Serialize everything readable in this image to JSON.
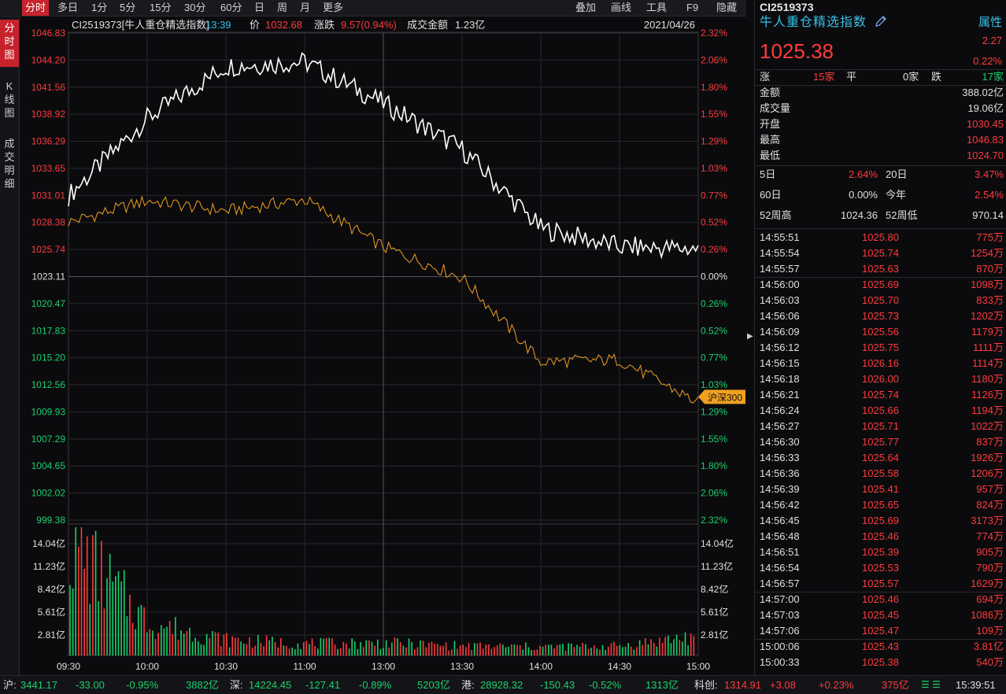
{
  "tabs": [
    {
      "label": "分时"
    },
    {
      "label": "多日"
    },
    {
      "label": "1分"
    },
    {
      "label": "5分"
    },
    {
      "label": "15分"
    },
    {
      "label": "30分"
    },
    {
      "label": "60分"
    },
    {
      "label": "日"
    },
    {
      "label": "周"
    },
    {
      "label": "月"
    },
    {
      "label": "更多"
    }
  ],
  "tools": {
    "overlay": "叠加",
    "draw": "画线",
    "tools": "工具",
    "f9": "F9",
    "hide": "隐藏"
  },
  "side_tabs": [
    {
      "label": "分时图"
    },
    {
      "label": "K线图"
    },
    {
      "label": "成交明细"
    }
  ],
  "header": {
    "code_name": "CI2519373[牛人重仓精选指数]",
    "time": "13:39",
    "price_label": "价",
    "price": "1032.68",
    "change_label": "涨跌",
    "change": "9.57(0.94%)",
    "amount_label": "成交金额",
    "amount": "1.23亿",
    "date": "2021/04/26"
  },
  "price_axis": [
    "1046.83",
    "1044.20",
    "1041.56",
    "1038.92",
    "1036.29",
    "1033.65",
    "1031.01",
    "1028.38",
    "1025.74",
    "1023.11",
    "1020.47",
    "1017.83",
    "1015.20",
    "1012.56",
    "1009.93",
    "1007.29",
    "1004.65",
    "1002.02",
    "999.38"
  ],
  "pct_axis": [
    "2.32%",
    "2.06%",
    "1.80%",
    "1.55%",
    "1.29%",
    "1.03%",
    "0.77%",
    "0.52%",
    "0.26%",
    "0.00%",
    "0.26%",
    "0.52%",
    "0.77%",
    "1.03%",
    "1.29%",
    "1.55%",
    "1.80%",
    "2.06%",
    "2.32%"
  ],
  "vol_axis": [
    "14.04亿",
    "11.23亿",
    "8.42亿",
    "5.61亿",
    "2.81亿"
  ],
  "time_axis": [
    "09:30",
    "10:00",
    "10:30",
    "11:00",
    "13:00",
    "13:30",
    "14:00",
    "14:30",
    "15:00"
  ],
  "hs300_label": "沪深300",
  "chart_data": {
    "type": "line",
    "x": [
      "09:30",
      "10:00",
      "10:30",
      "11:00",
      "11:30/13:00",
      "13:30",
      "14:00",
      "14:30",
      "15:00"
    ],
    "ylim": [
      999.38,
      1046.83
    ],
    "base": 1023.11,
    "series": [
      {
        "name": "",
        "color": "#ffffff",
        "values": [
          1031.0,
          1038.5,
          1043.6,
          1044.0,
          1040.0,
          1035.5,
          1027.8,
          1026.0,
          1025.8
        ]
      },
      {
        "name": "沪深300",
        "color": "#f0a020",
        "values": [
          1028.4,
          1030.5,
          1029.5,
          1030.6,
          1026.0,
          1023.0,
          1014.8,
          1015.0,
          1010.8
        ]
      }
    ],
    "volume": [
      14.5,
      4.2,
      2.0,
      1.5,
      1.6,
      1.2,
      1.1,
      1.2,
      2.5
    ]
  },
  "right": {
    "code": "CI2519373",
    "name": "牛人重仓精选指数",
    "attr": "属性",
    "price": "1025.38",
    "chg": "2.27",
    "chg_pct": "0.22%",
    "up_label": "涨",
    "up": "15家",
    "flat_label": "平",
    "flat": "0家",
    "down_label": "跌",
    "down": "17家",
    "stats": [
      {
        "label": "金额",
        "value": "388.02亿",
        "color": "#e0e0e0"
      },
      {
        "label": "成交量",
        "value": "19.06亿",
        "color": "#e0e0e0"
      },
      {
        "label": "开盘",
        "value": "1030.45",
        "color": "#ff3b3b"
      },
      {
        "label": "最高",
        "value": "1046.83",
        "color": "#ff3b3b"
      },
      {
        "label": "最低",
        "value": "1024.70",
        "color": "#ff3b3b"
      }
    ],
    "periods": [
      {
        "l1": "5日",
        "v1": "2.64%",
        "c1": "#ff3b3b",
        "l2": "20日",
        "v2": "3.47%",
        "c2": "#ff3b3b"
      },
      {
        "l1": "60日",
        "v1": "0.00%",
        "c1": "#e0e0e0",
        "l2": "今年",
        "v2": "2.54%",
        "c2": "#ff3b3b"
      },
      {
        "l1": "52周高",
        "v1": "1024.36",
        "c1": "#e0e0e0",
        "l2": "52周低",
        "v2": "970.14",
        "c2": "#e0e0e0"
      }
    ],
    "ticks": [
      {
        "t": "14:55:51",
        "p": "1025.80",
        "v": "775万"
      },
      {
        "t": "14:55:54",
        "p": "1025.74",
        "v": "1254万"
      },
      {
        "t": "14:55:57",
        "p": "1025.63",
        "v": "870万"
      },
      {
        "t": "14:56:00",
        "p": "1025.69",
        "v": "1098万"
      },
      {
        "t": "14:56:03",
        "p": "1025.70",
        "v": "833万"
      },
      {
        "t": "14:56:06",
        "p": "1025.73",
        "v": "1202万"
      },
      {
        "t": "14:56:09",
        "p": "1025.56",
        "v": "1179万"
      },
      {
        "t": "14:56:12",
        "p": "1025.75",
        "v": "1111万"
      },
      {
        "t": "14:56:15",
        "p": "1026.16",
        "v": "1114万"
      },
      {
        "t": "14:56:18",
        "p": "1026.00",
        "v": "1180万"
      },
      {
        "t": "14:56:21",
        "p": "1025.74",
        "v": "1126万"
      },
      {
        "t": "14:56:24",
        "p": "1025.66",
        "v": "1194万"
      },
      {
        "t": "14:56:27",
        "p": "1025.71",
        "v": "1022万"
      },
      {
        "t": "14:56:30",
        "p": "1025.77",
        "v": "837万"
      },
      {
        "t": "14:56:33",
        "p": "1025.64",
        "v": "1926万"
      },
      {
        "t": "14:56:36",
        "p": "1025.58",
        "v": "1206万"
      },
      {
        "t": "14:56:39",
        "p": "1025.41",
        "v": "957万"
      },
      {
        "t": "14:56:42",
        "p": "1025.65",
        "v": "824万"
      },
      {
        "t": "14:56:45",
        "p": "1025.69",
        "v": "3173万"
      },
      {
        "t": "14:56:48",
        "p": "1025.46",
        "v": "774万"
      },
      {
        "t": "14:56:51",
        "p": "1025.39",
        "v": "905万"
      },
      {
        "t": "14:56:54",
        "p": "1025.53",
        "v": "790万"
      },
      {
        "t": "14:56:57",
        "p": "1025.57",
        "v": "1629万"
      },
      {
        "t": "14:57:00",
        "p": "1025.46",
        "v": "694万"
      },
      {
        "t": "14:57:03",
        "p": "1025.45",
        "v": "1086万"
      },
      {
        "t": "14:57:06",
        "p": "1025.47",
        "v": "109万"
      },
      {
        "t": "15:00:06",
        "p": "1025.43",
        "v": "3.81亿"
      },
      {
        "t": "15:00:33",
        "p": "1025.38",
        "v": "540万"
      }
    ]
  },
  "bottom": {
    "sh_label": "沪:",
    "sh": "3441.17",
    "sh_chg": "-33.00",
    "sh_pct": "-0.95%",
    "sh_amt": "3882亿",
    "sz_label": "深:",
    "sz": "14224.45",
    "sz_chg": "-127.41",
    "sz_pct": "-0.89%",
    "sz_amt": "5203亿",
    "hk_label": "港:",
    "hk": "28928.32",
    "hk_chg": "-150.43",
    "hk_pct": "-0.52%",
    "hk_amt": "1313亿",
    "kc_label": "科创:",
    "kc": "1314.91",
    "kc_chg": "+3.08",
    "kc_pct": "+0.23%",
    "kc_amt": "375亿",
    "clock": "15:39:51"
  }
}
